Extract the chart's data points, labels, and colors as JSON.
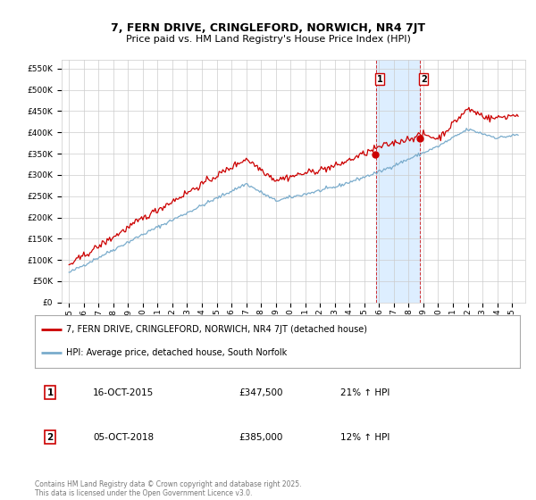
{
  "title": "7, FERN DRIVE, CRINGLEFORD, NORWICH, NR4 7JT",
  "subtitle": "Price paid vs. HM Land Registry's House Price Index (HPI)",
  "y_ticks": [
    0,
    50000,
    100000,
    150000,
    200000,
    250000,
    300000,
    350000,
    400000,
    450000,
    500000,
    550000
  ],
  "legend_line1": "7, FERN DRIVE, CRINGLEFORD, NORWICH, NR4 7JT (detached house)",
  "legend_line2": "HPI: Average price, detached house, South Norfolk",
  "annotation1": {
    "num": "1",
    "date": "16-OCT-2015",
    "price": "£347,500",
    "hpi": "21% ↑ HPI"
  },
  "annotation2": {
    "num": "2",
    "date": "05-OCT-2018",
    "price": "£385,000",
    "hpi": "12% ↑ HPI"
  },
  "footer": "Contains HM Land Registry data © Crown copyright and database right 2025.\nThis data is licensed under the Open Government Licence v3.0.",
  "sale1_year": 2015.79,
  "sale1_price": 347500,
  "sale2_year": 2018.76,
  "sale2_price": 385000,
  "line_color_red": "#cc0000",
  "line_color_blue": "#7aaccc",
  "highlight_color": "#ddeeff",
  "background_color": "#ffffff",
  "grid_color": "#cccccc"
}
